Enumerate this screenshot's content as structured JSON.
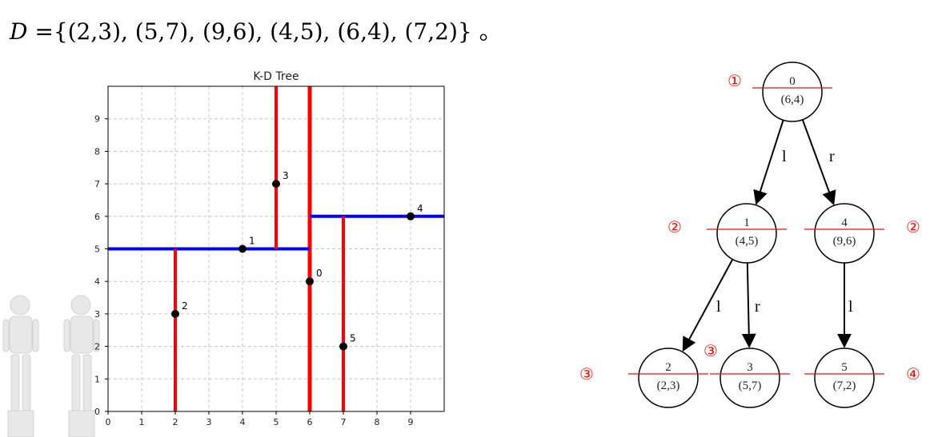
{
  "formula": {
    "var": "D",
    "text": " ={(2,3), (5,7), (9,6), (4,5), (6,4), (7,2)} 。"
  },
  "chart_data": {
    "type": "scatter",
    "title": "K-D Tree",
    "xlim": [
      0,
      10
    ],
    "ylim": [
      0,
      10
    ],
    "grid": true,
    "x_ticks": [
      "0",
      "1",
      "2",
      "3",
      "4",
      "5",
      "6",
      "7",
      "8",
      "9"
    ],
    "y_ticks": [
      "0",
      "1",
      "2",
      "3",
      "4",
      "5",
      "6",
      "7",
      "8",
      "9"
    ],
    "points": [
      {
        "label": "0",
        "x": 6,
        "y": 4
      },
      {
        "label": "1",
        "x": 4,
        "y": 5
      },
      {
        "label": "2",
        "x": 2,
        "y": 3
      },
      {
        "label": "3",
        "x": 5,
        "y": 7
      },
      {
        "label": "4",
        "x": 9,
        "y": 6
      },
      {
        "label": "5",
        "x": 7,
        "y": 2
      }
    ],
    "splits": [
      {
        "axis": "x",
        "at": 6,
        "from": 0,
        "to": 10,
        "color": "#ff0000",
        "bold": true
      },
      {
        "axis": "y",
        "at": 5,
        "from": 0,
        "to": 6,
        "color": "#0000ff",
        "bold": false
      },
      {
        "axis": "y",
        "at": 6,
        "from": 6,
        "to": 10,
        "color": "#0000ff",
        "bold": false
      },
      {
        "axis": "x",
        "at": 2,
        "from": 0,
        "to": 5,
        "color": "#ff0000",
        "bold": false
      },
      {
        "axis": "x",
        "at": 5,
        "from": 5,
        "to": 10,
        "color": "#ff0000",
        "bold": false
      },
      {
        "axis": "x",
        "at": 7,
        "from": 0,
        "to": 6,
        "color": "#ff0000",
        "bold": false
      }
    ]
  },
  "tree": {
    "nodes": [
      {
        "id": "0",
        "point": "(6,4)"
      },
      {
        "id": "1",
        "point": "(4,5)"
      },
      {
        "id": "4",
        "point": "(9,6)"
      },
      {
        "id": "2",
        "point": "(2,3)"
      },
      {
        "id": "3",
        "point": "(5,7)"
      },
      {
        "id": "5",
        "point": "(7,2)"
      }
    ],
    "edges": [
      {
        "from": "0",
        "to": "1",
        "label": "l"
      },
      {
        "from": "0",
        "to": "4",
        "label": "r"
      },
      {
        "from": "1",
        "to": "2",
        "label": "l"
      },
      {
        "from": "1",
        "to": "3",
        "label": "r"
      },
      {
        "from": "4",
        "to": "5",
        "label": "l"
      }
    ],
    "step_marks": [
      "①",
      "②",
      "②",
      "③",
      "③",
      "④"
    ]
  },
  "colors": {
    "split_x": "#ff0000",
    "split_y": "#0000ff",
    "step_mark": "#e8120c"
  }
}
